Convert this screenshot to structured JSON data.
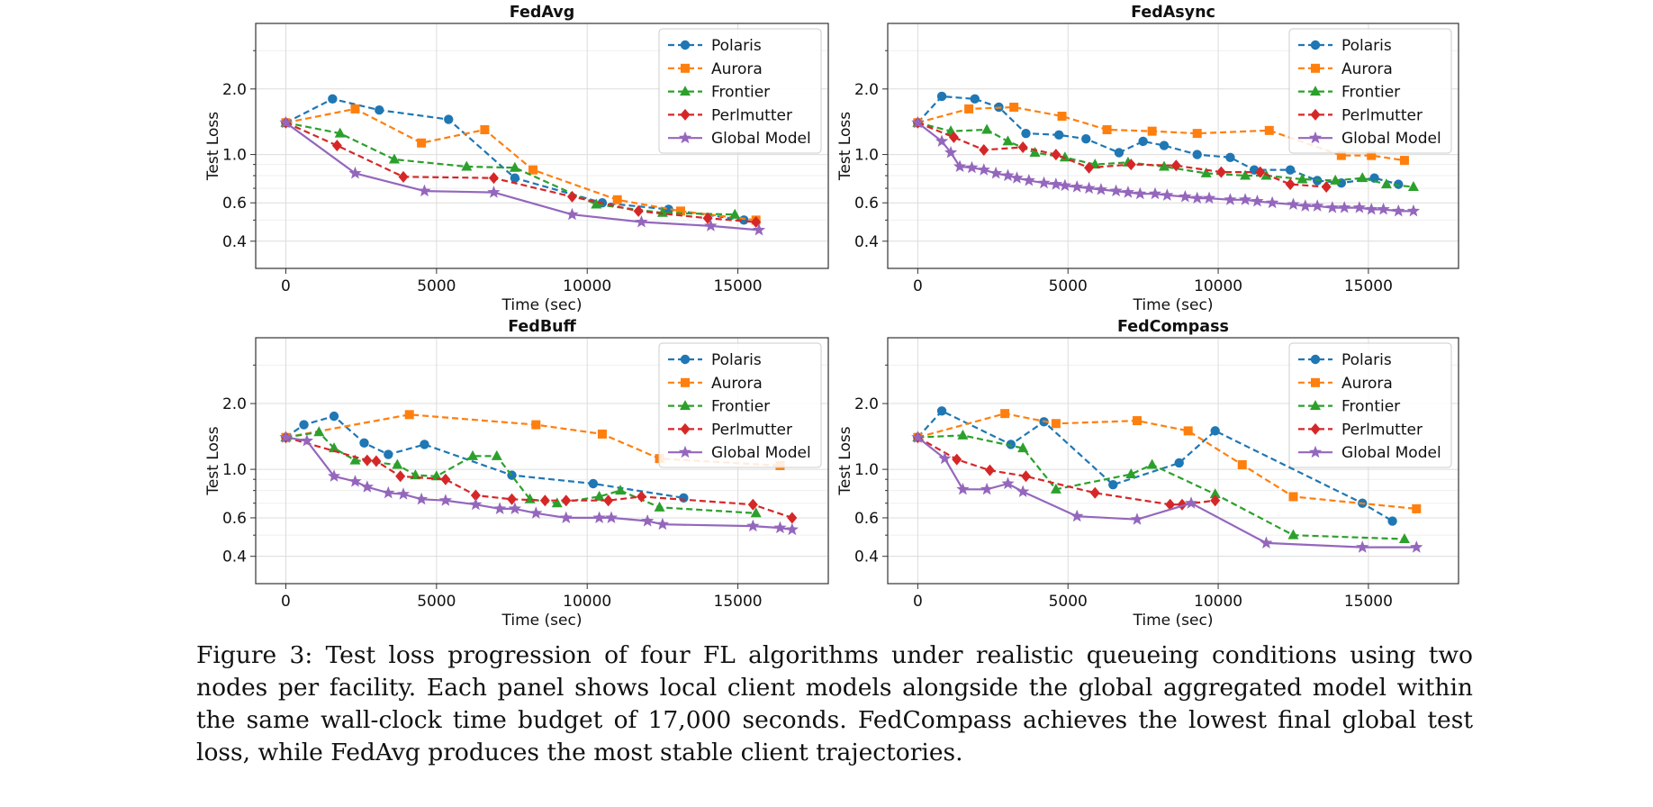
{
  "caption": {
    "label": "Figure 3:",
    "text": "Test loss progression of four FL algorithms under realistic queueing conditions using two nodes per facility. Each panel shows local client models alongside the global aggregated model within the same wall-clock time budget of 17,000 seconds. FedCompass achieves the lowest final global test loss, while FedAvg produces the most stable client trajectories."
  },
  "colors": {
    "Polaris": "#1f77b4",
    "Aurora": "#ff7f0e",
    "Frontier": "#2ca02c",
    "Perlmutter": "#d62728",
    "Global Model": "#9467bd"
  },
  "chart_data": [
    {
      "type": "line",
      "title": "FedAvg",
      "xlabel": "Time (sec)",
      "ylabel": "Test Loss",
      "yscale": "log",
      "xlim": [
        -1000,
        18000
      ],
      "ylim": [
        0.3,
        4.0
      ],
      "xticks": [
        0,
        5000,
        10000,
        15000
      ],
      "xtick_labels": [
        "0",
        "5000",
        "10000",
        "15000"
      ],
      "yticks": [
        0.4,
        0.6,
        1.0,
        2.0
      ],
      "ytick_labels": [
        "0.4",
        "0.6",
        "1.0",
        "2.0"
      ],
      "legend": "top-right",
      "grid": true,
      "series": [
        {
          "name": "Polaris",
          "marker": "circle",
          "dash": true,
          "x": [
            0,
            1550,
            3100,
            5400,
            7600,
            10500,
            12700,
            15200
          ],
          "y": [
            1.4,
            1.8,
            1.6,
            1.45,
            0.78,
            0.6,
            0.56,
            0.5
          ]
        },
        {
          "name": "Aurora",
          "marker": "square",
          "dash": true,
          "x": [
            0,
            2300,
            4500,
            6600,
            8200,
            11000,
            13100,
            15600
          ],
          "y": [
            1.4,
            1.62,
            1.13,
            1.3,
            0.85,
            0.62,
            0.55,
            0.5
          ]
        },
        {
          "name": "Frontier",
          "marker": "triangle",
          "dash": true,
          "x": [
            0,
            1800,
            3600,
            6000,
            7600,
            10300,
            12500,
            14900
          ],
          "y": [
            1.4,
            1.25,
            0.95,
            0.88,
            0.87,
            0.59,
            0.54,
            0.53
          ]
        },
        {
          "name": "Perlmutter",
          "marker": "diamond",
          "dash": true,
          "x": [
            0,
            1700,
            3900,
            6900,
            9500,
            11700,
            14000,
            15600
          ],
          "y": [
            1.4,
            1.1,
            0.79,
            0.78,
            0.64,
            0.55,
            0.51,
            0.49
          ]
        },
        {
          "name": "Global Model",
          "marker": "star",
          "dash": false,
          "x": [
            0,
            2300,
            4600,
            6900,
            9500,
            11800,
            14100,
            15700
          ],
          "y": [
            1.4,
            0.82,
            0.68,
            0.67,
            0.53,
            0.49,
            0.47,
            0.45
          ]
        }
      ]
    },
    {
      "type": "line",
      "title": "FedAsync",
      "xlabel": "Time (sec)",
      "ylabel": "Test Loss",
      "yscale": "log",
      "xlim": [
        -1000,
        18000
      ],
      "ylim": [
        0.3,
        4.0
      ],
      "xticks": [
        0,
        5000,
        10000,
        15000
      ],
      "xtick_labels": [
        "0",
        "5000",
        "10000",
        "15000"
      ],
      "yticks": [
        0.4,
        0.6,
        1.0,
        2.0
      ],
      "ytick_labels": [
        "0.4",
        "0.6",
        "1.0",
        "2.0"
      ],
      "legend": "top-right",
      "grid": true,
      "series": [
        {
          "name": "Polaris",
          "marker": "circle",
          "dash": true,
          "x": [
            0,
            800,
            1900,
            2700,
            3600,
            4700,
            5600,
            6700,
            7500,
            8200,
            9300,
            10400,
            11200,
            12400,
            13300,
            14100,
            15200,
            16000
          ],
          "y": [
            1.4,
            1.85,
            1.8,
            1.65,
            1.25,
            1.23,
            1.18,
            1.02,
            1.15,
            1.1,
            1.0,
            0.97,
            0.85,
            0.85,
            0.76,
            0.74,
            0.78,
            0.73
          ]
        },
        {
          "name": "Aurora",
          "marker": "square",
          "dash": true,
          "x": [
            0,
            1700,
            3200,
            4800,
            6300,
            7800,
            9300,
            11700,
            14100,
            15100,
            16200
          ],
          "y": [
            1.4,
            1.62,
            1.65,
            1.5,
            1.3,
            1.28,
            1.25,
            1.29,
            0.99,
            0.99,
            0.94
          ]
        },
        {
          "name": "Frontier",
          "marker": "triangle",
          "dash": true,
          "x": [
            0,
            1100,
            2300,
            3000,
            3900,
            4900,
            5900,
            7000,
            8200,
            9600,
            10900,
            11600,
            12800,
            13900,
            14800,
            15600,
            16500
          ],
          "y": [
            1.4,
            1.28,
            1.3,
            1.15,
            1.02,
            0.97,
            0.9,
            0.92,
            0.88,
            0.82,
            0.8,
            0.8,
            0.77,
            0.76,
            0.78,
            0.73,
            0.71
          ]
        },
        {
          "name": "Perlmutter",
          "marker": "diamond",
          "dash": true,
          "x": [
            0,
            1200,
            2200,
            3500,
            4600,
            5700,
            7100,
            8600,
            10100,
            11400,
            12400,
            13600
          ],
          "y": [
            1.4,
            1.2,
            1.05,
            1.08,
            1.0,
            0.87,
            0.9,
            0.89,
            0.83,
            0.83,
            0.73,
            0.71
          ]
        },
        {
          "name": "Global Model",
          "marker": "star",
          "dash": false,
          "x": [
            0,
            800,
            1100,
            1400,
            1800,
            2200,
            2600,
            3000,
            3300,
            3700,
            4200,
            4600,
            4900,
            5300,
            5700,
            6100,
            6600,
            7000,
            7400,
            7900,
            8300,
            8900,
            9300,
            9700,
            10400,
            10900,
            11300,
            11800,
            12500,
            12900,
            13300,
            13800,
            14200,
            14700,
            15100,
            15500,
            16000,
            16500
          ],
          "y": [
            1.4,
            1.15,
            1.02,
            0.88,
            0.87,
            0.85,
            0.82,
            0.8,
            0.78,
            0.76,
            0.74,
            0.73,
            0.72,
            0.71,
            0.7,
            0.69,
            0.68,
            0.67,
            0.66,
            0.66,
            0.65,
            0.64,
            0.63,
            0.63,
            0.62,
            0.62,
            0.61,
            0.6,
            0.59,
            0.58,
            0.58,
            0.57,
            0.57,
            0.57,
            0.56,
            0.56,
            0.55,
            0.55
          ]
        }
      ]
    },
    {
      "type": "line",
      "title": "FedBuff",
      "xlabel": "Time (sec)",
      "ylabel": "Test Loss",
      "yscale": "log",
      "xlim": [
        -1000,
        18000
      ],
      "ylim": [
        0.3,
        4.0
      ],
      "xticks": [
        0,
        5000,
        10000,
        15000
      ],
      "xtick_labels": [
        "0",
        "5000",
        "10000",
        "15000"
      ],
      "yticks": [
        0.4,
        0.6,
        1.0,
        2.0
      ],
      "ytick_labels": [
        "0.4",
        "0.6",
        "1.0",
        "2.0"
      ],
      "legend": "top-right",
      "grid": true,
      "series": [
        {
          "name": "Polaris",
          "marker": "circle",
          "dash": true,
          "x": [
            0,
            600,
            1600,
            2600,
            3400,
            4600,
            7500,
            10200,
            13200
          ],
          "y": [
            1.4,
            1.6,
            1.75,
            1.32,
            1.17,
            1.3,
            0.94,
            0.86,
            0.74
          ]
        },
        {
          "name": "Aurora",
          "marker": "square",
          "dash": true,
          "x": [
            0,
            4100,
            8300,
            10500,
            12400,
            16400
          ],
          "y": [
            1.4,
            1.78,
            1.6,
            1.45,
            1.12,
            1.04
          ]
        },
        {
          "name": "Frontier",
          "marker": "triangle",
          "dash": true,
          "x": [
            0,
            1100,
            1600,
            2300,
            3700,
            4300,
            5000,
            6200,
            7000,
            8100,
            9000,
            10400,
            11100,
            12400,
            15600
          ],
          "y": [
            1.4,
            1.48,
            1.25,
            1.1,
            1.05,
            0.94,
            0.93,
            1.15,
            1.15,
            0.73,
            0.7,
            0.75,
            0.8,
            0.67,
            0.63
          ]
        },
        {
          "name": "Perlmutter",
          "marker": "diamond",
          "dash": true,
          "x": [
            0,
            2700,
            3000,
            3800,
            5300,
            6300,
            7500,
            8600,
            9300,
            10700,
            11800,
            15500,
            16800
          ],
          "y": [
            1.4,
            1.1,
            1.09,
            0.93,
            0.9,
            0.76,
            0.73,
            0.72,
            0.72,
            0.72,
            0.75,
            0.69,
            0.6
          ]
        },
        {
          "name": "Global Model",
          "marker": "star",
          "dash": false,
          "x": [
            0,
            700,
            1600,
            2300,
            2700,
            3400,
            3900,
            4500,
            5300,
            6300,
            7100,
            7600,
            8300,
            9300,
            10400,
            10800,
            12000,
            12500,
            15500,
            16400,
            16800
          ],
          "y": [
            1.4,
            1.35,
            0.93,
            0.88,
            0.83,
            0.78,
            0.77,
            0.73,
            0.72,
            0.69,
            0.66,
            0.66,
            0.63,
            0.6,
            0.6,
            0.6,
            0.58,
            0.56,
            0.55,
            0.54,
            0.53
          ]
        }
      ]
    },
    {
      "type": "line",
      "title": "FedCompass",
      "xlabel": "Time (sec)",
      "ylabel": "Test Loss",
      "yscale": "log",
      "xlim": [
        -1000,
        18000
      ],
      "ylim": [
        0.3,
        4.0
      ],
      "xticks": [
        0,
        5000,
        10000,
        15000
      ],
      "xtick_labels": [
        "0",
        "5000",
        "10000",
        "15000"
      ],
      "yticks": [
        0.4,
        0.6,
        1.0,
        2.0
      ],
      "ytick_labels": [
        "0.4",
        "0.6",
        "1.0",
        "2.0"
      ],
      "legend": "top-right",
      "grid": true,
      "series": [
        {
          "name": "Polaris",
          "marker": "circle",
          "dash": true,
          "x": [
            0,
            800,
            3100,
            4200,
            6500,
            8700,
            9900,
            14800,
            15800
          ],
          "y": [
            1.4,
            1.85,
            1.3,
            1.65,
            0.85,
            1.07,
            1.5,
            0.7,
            0.58
          ]
        },
        {
          "name": "Aurora",
          "marker": "square",
          "dash": true,
          "x": [
            0,
            2900,
            4600,
            7300,
            9000,
            10800,
            12500,
            16600
          ],
          "y": [
            1.4,
            1.8,
            1.62,
            1.67,
            1.5,
            1.05,
            0.75,
            0.66
          ]
        },
        {
          "name": "Frontier",
          "marker": "triangle",
          "dash": true,
          "x": [
            0,
            1500,
            3500,
            4600,
            7100,
            7800,
            9900,
            12500,
            16200
          ],
          "y": [
            1.4,
            1.43,
            1.25,
            0.81,
            0.95,
            1.05,
            0.77,
            0.5,
            0.48
          ]
        },
        {
          "name": "Perlmutter",
          "marker": "diamond",
          "dash": true,
          "x": [
            0,
            1300,
            2400,
            3600,
            5900,
            8400,
            8800,
            9900
          ],
          "y": [
            1.4,
            1.11,
            0.99,
            0.93,
            0.78,
            0.69,
            0.69,
            0.72
          ]
        },
        {
          "name": "Global Model",
          "marker": "star",
          "dash": false,
          "x": [
            0,
            900,
            1500,
            2300,
            3000,
            3500,
            5300,
            7300,
            9100,
            11600,
            14800,
            16600
          ],
          "y": [
            1.4,
            1.12,
            0.81,
            0.81,
            0.86,
            0.79,
            0.61,
            0.59,
            0.7,
            0.46,
            0.44,
            0.44
          ]
        }
      ]
    }
  ]
}
